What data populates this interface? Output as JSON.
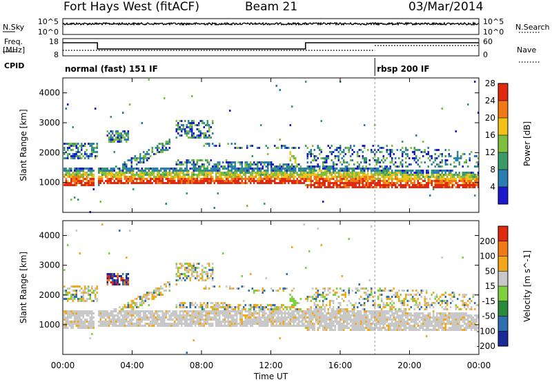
{
  "header": {
    "station": "Fort Hays West (fitACF)",
    "beam": "Beam 21",
    "date": "03/Mar/2014"
  },
  "noise_panel": {
    "left_label": "N.Sky",
    "right_label": "N.Search",
    "tick_top": "10^5",
    "tick_bottom": "10^0"
  },
  "freq_panel": {
    "left_label_1": "Freq.",
    "left_label_2": "[MHz]",
    "right_label": "Nave",
    "left_ticks": [
      "18",
      "8"
    ],
    "right_ticks": [
      "60",
      "0"
    ]
  },
  "cpid": {
    "label": "CPID",
    "modes": [
      {
        "name": "normal (fast) 151 IF",
        "start_hour": 0,
        "end_hour": 18
      },
      {
        "name": "rbsp 200 IF",
        "start_hour": 18,
        "end_hour": 24
      }
    ]
  },
  "chart_data": [
    {
      "type": "heatmap",
      "title": "",
      "xlabel": "Time UT",
      "ylabel": "Slant Range [km]",
      "xlim": [
        "00:00",
        "24:00"
      ],
      "ylim": [
        0,
        4500
      ],
      "x_ticks": [
        "00:00",
        "04:00",
        "08:00",
        "12:00",
        "16:00",
        "20:00",
        "00:00"
      ],
      "y_ticks": [
        1000,
        2000,
        3000,
        4000
      ],
      "colorbar": {
        "label": "Power [dB]",
        "ticks": [
          4,
          8,
          12,
          16,
          20,
          24,
          28
        ],
        "colors": [
          "#1a1acc",
          "#2a7db0",
          "#3a9a6a",
          "#7fbf3f",
          "#f2c21a",
          "#f07a16",
          "#e02a10"
        ]
      },
      "features": [
        {
          "name": "near-range echo band",
          "hour_start": 0,
          "hour_end": 24,
          "range_km": [
            900,
            1500
          ],
          "power_db": 26
        },
        {
          "name": "rising echo arc",
          "hour_start": 2,
          "hour_end": 6,
          "range_km": [
            1000,
            2500
          ],
          "power_db": 12
        },
        {
          "name": "far-range patches",
          "hour_start": 2.5,
          "hour_end": 8.5,
          "range_km": [
            2400,
            3100
          ],
          "power_db": 12
        },
        {
          "name": "mid-range streak",
          "hour_start": 6.5,
          "hour_end": 13.5,
          "range_km": [
            1500,
            1800
          ],
          "power_db": 10
        },
        {
          "name": "descending streak",
          "hour_start": 13,
          "hour_end": 14,
          "range_km": [
            1000,
            2000
          ],
          "power_db": 14
        }
      ]
    },
    {
      "type": "heatmap",
      "title": "",
      "xlabel": "Time UT",
      "ylabel": "Slant Range [km]",
      "xlim": [
        "00:00",
        "24:00"
      ],
      "ylim": [
        0,
        4500
      ],
      "x_ticks": [
        "00:00",
        "04:00",
        "08:00",
        "12:00",
        "16:00",
        "20:00",
        "00:00"
      ],
      "y_ticks": [
        1000,
        2000,
        3000,
        4000
      ],
      "colorbar": {
        "label": "Velocity [m s^-1]",
        "ticks": [
          200,
          100,
          50,
          15,
          -15,
          -50,
          -100,
          -200
        ],
        "colors": [
          "#1a2a9a",
          "#2e6fb0",
          "#2a8a3a",
          "#7fcf3f",
          "#c8c8c8",
          "#f2a81a",
          "#f07a16",
          "#e02a10"
        ]
      },
      "features": [
        {
          "name": "ground scatter band",
          "hour_start": 0,
          "hour_end": 24,
          "range_km": [
            900,
            1800
          ],
          "velocity": 0
        },
        {
          "name": "high velocity patch",
          "hour_start": 2,
          "hour_end": 3.8,
          "range_km": [
            2300,
            2800
          ],
          "velocity": -200
        },
        {
          "name": "green streak",
          "hour_start": 11,
          "hour_end": 14,
          "range_km": [
            800,
            2200
          ],
          "velocity": 30
        }
      ]
    }
  ]
}
